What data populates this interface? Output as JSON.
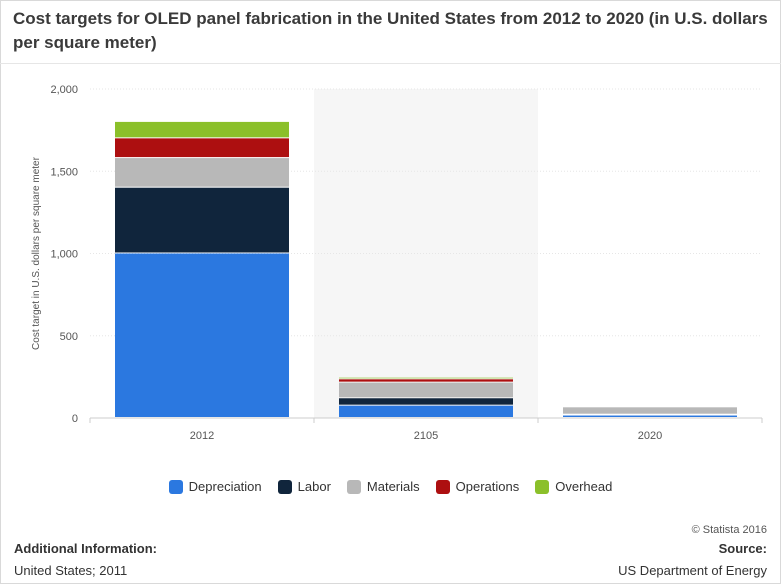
{
  "chart_data": {
    "type": "bar",
    "stacked": true,
    "title": "Cost targets for OLED panel fabrication in the United States from 2012 to 2020 (in U.S. dollars per square meter)",
    "xlabel": "",
    "ylabel": "Cost target in U.S. dollars per square meter",
    "categories": [
      "2012",
      "2105",
      "2020"
    ],
    "ylim": [
      0,
      2000
    ],
    "yticks": [
      0,
      500,
      1000,
      1500,
      2000
    ],
    "ytick_labels": [
      "0",
      "500",
      "1,000",
      "1,500",
      "2,000"
    ],
    "grid": true,
    "legend_position": "bottom",
    "series": [
      {
        "name": "Depreciation",
        "color": "#2b78e0",
        "values": [
          1000,
          75,
          15
        ]
      },
      {
        "name": "Labor",
        "color": "#10253c",
        "values": [
          400,
          45,
          5
        ]
      },
      {
        "name": "Materials",
        "color": "#b8b8b8",
        "values": [
          180,
          95,
          45
        ]
      },
      {
        "name": "Operations",
        "color": "#ad0f10",
        "values": [
          120,
          20,
          2
        ]
      },
      {
        "name": "Overhead",
        "color": "#8bc02a",
        "values": [
          100,
          10,
          1
        ]
      }
    ]
  },
  "footer": {
    "copyright": "© Statista 2016",
    "additional_info_label": "Additional Information:",
    "additional_info_value": "United States; 2011",
    "source_label": "Source:",
    "source_value": "US Department of Energy"
  }
}
